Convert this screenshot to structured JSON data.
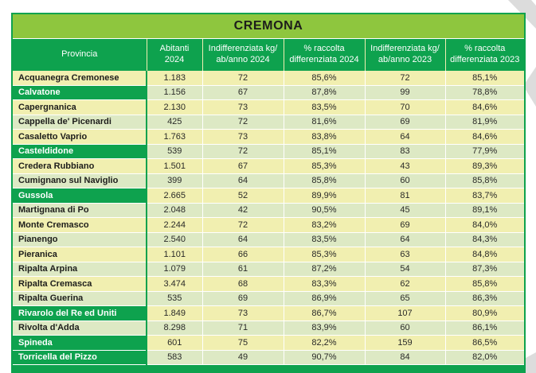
{
  "colors": {
    "green": "#0ea24e",
    "title_green": "#8ec63e",
    "row_yellow": "#f1efb0",
    "row_green": "#dde9c4",
    "text_dark": "#1d1d1b",
    "shape_gray": "#dcdcdc"
  },
  "table": {
    "title": "CREMONA",
    "columns": [
      [
        "Provincia"
      ],
      [
        "Abitanti",
        "2024"
      ],
      [
        "Indifferenziata kg/",
        "ab/anno 2024"
      ],
      [
        "% raccolta",
        "differenziata 2024"
      ],
      [
        "Indifferenziata kg/",
        "ab/anno 2023"
      ],
      [
        "% raccolta",
        "differenziata 2023"
      ]
    ],
    "rows": [
      {
        "provincia": "Acquanegra Cremonese",
        "abitanti_2024": "1.183",
        "indifferenziata_2024": "72",
        "raccolta_2024": "85,6%",
        "indifferenziata_2023": "72",
        "raccolta_2023": "85,1%",
        "highlight": false
      },
      {
        "provincia": "Calvatone",
        "abitanti_2024": "1.156",
        "indifferenziata_2024": "67",
        "raccolta_2024": "87,8%",
        "indifferenziata_2023": "99",
        "raccolta_2023": "78,8%",
        "highlight": true
      },
      {
        "provincia": "Capergnanica",
        "abitanti_2024": "2.130",
        "indifferenziata_2024": "73",
        "raccolta_2024": "83,5%",
        "indifferenziata_2023": "70",
        "raccolta_2023": "84,6%",
        "highlight": false
      },
      {
        "provincia": "Cappella de' Picenardi",
        "abitanti_2024": "425",
        "indifferenziata_2024": "72",
        "raccolta_2024": "81,6%",
        "indifferenziata_2023": "69",
        "raccolta_2023": "81,9%",
        "highlight": false
      },
      {
        "provincia": "Casaletto Vaprio",
        "abitanti_2024": "1.763",
        "indifferenziata_2024": "73",
        "raccolta_2024": "83,8%",
        "indifferenziata_2023": "64",
        "raccolta_2023": "84,6%",
        "highlight": false
      },
      {
        "provincia": "Casteldidone",
        "abitanti_2024": "539",
        "indifferenziata_2024": "72",
        "raccolta_2024": "85,1%",
        "indifferenziata_2023": "83",
        "raccolta_2023": "77,9%",
        "highlight": true
      },
      {
        "provincia": "Credera Rubbiano",
        "abitanti_2024": "1.501",
        "indifferenziata_2024": "67",
        "raccolta_2024": "85,3%",
        "indifferenziata_2023": "43",
        "raccolta_2023": "89,3%",
        "highlight": false
      },
      {
        "provincia": "Cumignano sul Naviglio",
        "abitanti_2024": "399",
        "indifferenziata_2024": "64",
        "raccolta_2024": "85,8%",
        "indifferenziata_2023": "60",
        "raccolta_2023": "85,8%",
        "highlight": false
      },
      {
        "provincia": "Gussola",
        "abitanti_2024": "2.665",
        "indifferenziata_2024": "52",
        "raccolta_2024": "89,9%",
        "indifferenziata_2023": "81",
        "raccolta_2023": "83,7%",
        "highlight": true
      },
      {
        "provincia": "Martignana di Po",
        "abitanti_2024": "2.048",
        "indifferenziata_2024": "42",
        "raccolta_2024": "90,5%",
        "indifferenziata_2023": "45",
        "raccolta_2023": "89,1%",
        "highlight": false
      },
      {
        "provincia": "Monte Cremasco",
        "abitanti_2024": "2.244",
        "indifferenziata_2024": "72",
        "raccolta_2024": "83,2%",
        "indifferenziata_2023": "69",
        "raccolta_2023": "84,0%",
        "highlight": false
      },
      {
        "provincia": "Pianengo",
        "abitanti_2024": "2.540",
        "indifferenziata_2024": "64",
        "raccolta_2024": "83,5%",
        "indifferenziata_2023": "64",
        "raccolta_2023": "84,3%",
        "highlight": false
      },
      {
        "provincia": "Pieranica",
        "abitanti_2024": "1.101",
        "indifferenziata_2024": "66",
        "raccolta_2024": "85,3%",
        "indifferenziata_2023": "63",
        "raccolta_2023": "84,8%",
        "highlight": false
      },
      {
        "provincia": "Ripalta Arpina",
        "abitanti_2024": "1.079",
        "indifferenziata_2024": "61",
        "raccolta_2024": "87,2%",
        "indifferenziata_2023": "54",
        "raccolta_2023": "87,3%",
        "highlight": false
      },
      {
        "provincia": "Ripalta Cremasca",
        "abitanti_2024": "3.474",
        "indifferenziata_2024": "68",
        "raccolta_2024": "83,3%",
        "indifferenziata_2023": "62",
        "raccolta_2023": "85,8%",
        "highlight": false
      },
      {
        "provincia": "Ripalta Guerina",
        "abitanti_2024": "535",
        "indifferenziata_2024": "69",
        "raccolta_2024": "86,9%",
        "indifferenziata_2023": "65",
        "raccolta_2023": "86,3%",
        "highlight": false
      },
      {
        "provincia": "Rivarolo del Re ed Uniti",
        "abitanti_2024": "1.849",
        "indifferenziata_2024": "73",
        "raccolta_2024": "86,7%",
        "indifferenziata_2023": "107",
        "raccolta_2023": "80,9%",
        "highlight": true
      },
      {
        "provincia": "Rivolta d'Adda",
        "abitanti_2024": "8.298",
        "indifferenziata_2024": "71",
        "raccolta_2024": "83,9%",
        "indifferenziata_2023": "60",
        "raccolta_2023": "86,1%",
        "highlight": false
      },
      {
        "provincia": "Spineda",
        "abitanti_2024": "601",
        "indifferenziata_2024": "75",
        "raccolta_2024": "82,2%",
        "indifferenziata_2023": "159",
        "raccolta_2023": "86,5%",
        "highlight": true
      },
      {
        "provincia": "Torricella del Pizzo",
        "abitanti_2024": "583",
        "indifferenziata_2024": "49",
        "raccolta_2024": "90,7%",
        "indifferenziata_2023": "84",
        "raccolta_2023": "82,0%",
        "highlight": true
      }
    ]
  }
}
